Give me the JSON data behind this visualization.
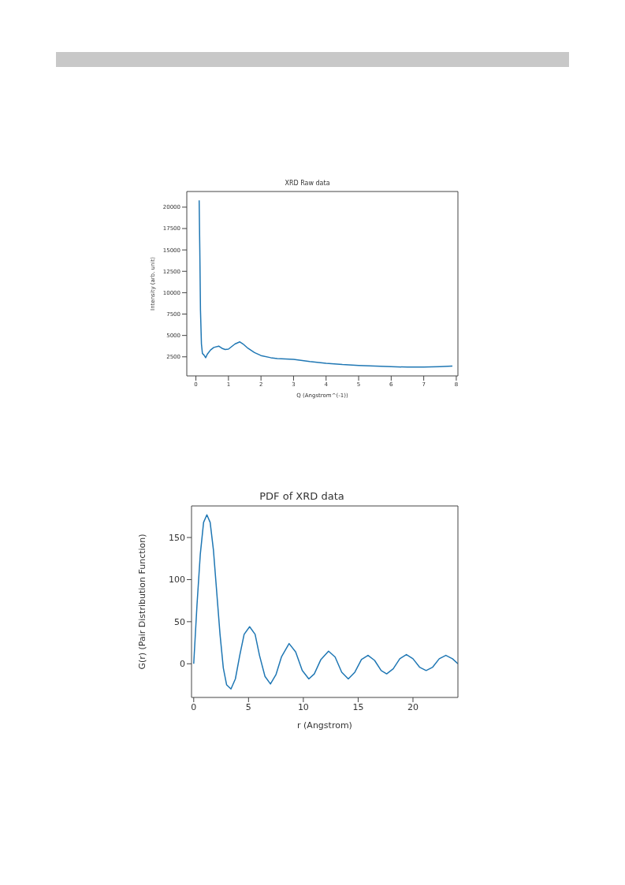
{
  "chart_data": [
    {
      "type": "line",
      "title": "XRD Raw data",
      "xlabel": "Q (Angstrom^(-1))",
      "ylabel": "Intensity (arb. unit)",
      "xlim": [
        -0.28,
        8.05
      ],
      "ylim": [
        270,
        21830
      ],
      "xticks": [
        0,
        1,
        2,
        3,
        4,
        5,
        6,
        7,
        8
      ],
      "yticks": [
        2500,
        5000,
        7500,
        10000,
        12500,
        15000,
        17500,
        20000
      ],
      "grid": false,
      "legend": false,
      "marker": "none",
      "line_style": "solid",
      "series": [
        {
          "color": "#1f77b4",
          "x": [
            0.1,
            0.12,
            0.14,
            0.17,
            0.2,
            0.25,
            0.3,
            0.35,
            0.45,
            0.55,
            0.7,
            0.8,
            0.9,
            1.0,
            1.1,
            1.2,
            1.35,
            1.45,
            1.6,
            1.8,
            2.0,
            2.3,
            2.5,
            3.0,
            3.5,
            4.0,
            4.5,
            5.0,
            5.5,
            6.0,
            6.5,
            7.0,
            7.5,
            7.88
          ],
          "values": [
            20800,
            15000,
            8000,
            4000,
            2900,
            2700,
            2400,
            2800,
            3300,
            3600,
            3750,
            3500,
            3350,
            3400,
            3700,
            4000,
            4250,
            4000,
            3500,
            3000,
            2650,
            2400,
            2300,
            2200,
            1950,
            1750,
            1600,
            1500,
            1420,
            1350,
            1300,
            1300,
            1350,
            1420
          ]
        }
      ]
    },
    {
      "type": "line",
      "title": "PDF of XRD data",
      "xlabel": "r (Angstrom)",
      "ylabel": "G(r) (Pair Distribution Function)",
      "xlim": [
        -0.2,
        24.1
      ],
      "ylim": [
        -40,
        187.5
      ],
      "xticks": [
        0,
        5,
        10,
        15,
        20
      ],
      "yticks": [
        0,
        50,
        100,
        150
      ],
      "grid": false,
      "legend": false,
      "marker": "none",
      "line_style": "solid",
      "series": [
        {
          "color": "#1f77b4",
          "x": [
            0,
            0.3,
            0.6,
            0.9,
            1.2,
            1.5,
            1.8,
            2.1,
            2.4,
            2.7,
            3.0,
            3.4,
            3.8,
            4.2,
            4.6,
            5.1,
            5.6,
            6.0,
            6.5,
            7.0,
            7.5,
            8.0,
            8.7,
            9.3,
            9.9,
            10.5,
            11.0,
            11.6,
            12.3,
            12.9,
            13.5,
            14.1,
            14.7,
            15.3,
            15.9,
            16.5,
            17.1,
            17.6,
            18.2,
            18.8,
            19.4,
            20.0,
            20.6,
            21.2,
            21.8,
            22.4,
            23.0,
            23.6,
            24.1
          ],
          "values": [
            0,
            70,
            130,
            168,
            177,
            168,
            135,
            85,
            35,
            -5,
            -25,
            -30,
            -18,
            10,
            35,
            44,
            35,
            10,
            -15,
            -24,
            -13,
            8,
            24,
            14,
            -8,
            -18,
            -12,
            5,
            15,
            8,
            -10,
            -18,
            -10,
            5,
            10,
            4,
            -8,
            -12,
            -6,
            6,
            11,
            6,
            -4,
            -8,
            -4,
            6,
            10,
            6,
            0
          ]
        }
      ]
    }
  ]
}
